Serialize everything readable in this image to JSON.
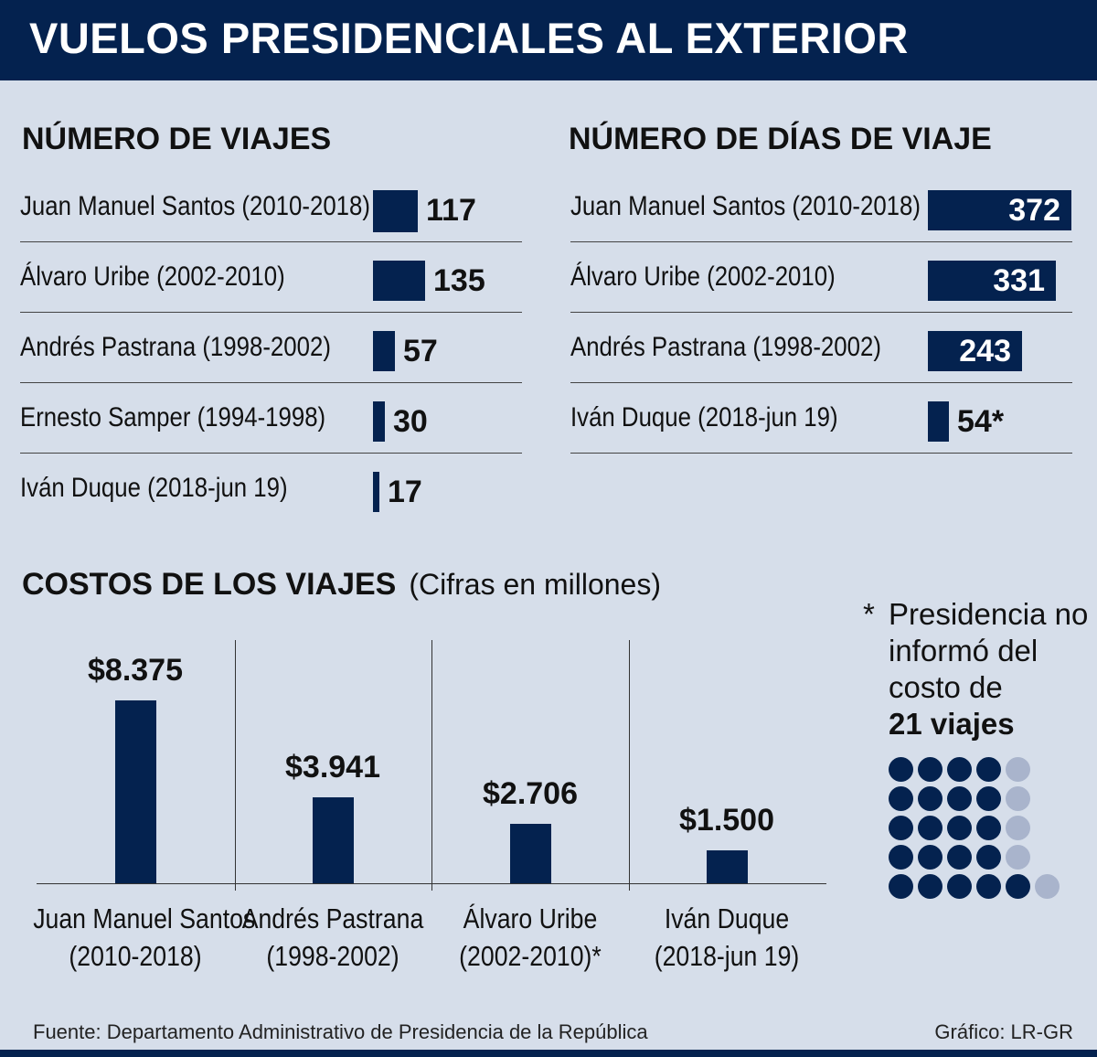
{
  "title": "VUELOS PRESIDENCIALES AL EXTERIOR",
  "chart_data": [
    {
      "type": "bar",
      "orientation": "horizontal",
      "title": "NÚMERO DE VIAJES",
      "categories": [
        "Juan Manuel Santos (2010-2018)",
        "Álvaro Uribe (2002-2010)",
        "Andrés Pastrana (1998-2002)",
        "Ernesto Samper (1994-1998)",
        "Iván Duque (2018-jun 19)"
      ],
      "values": [
        117,
        135,
        57,
        30,
        17
      ],
      "labels": [
        "117",
        "135",
        "57",
        "30",
        "17"
      ],
      "color": "#04224f"
    },
    {
      "type": "bar",
      "orientation": "horizontal",
      "title": "NÚMERO DE DÍAS DE VIAJE",
      "categories": [
        "Juan Manuel Santos (2010-2018)",
        "Álvaro Uribe (2002-2010)",
        "Andrés Pastrana (1998-2002)",
        "Iván Duque (2018-jun 19)"
      ],
      "values": [
        372,
        331,
        243,
        54
      ],
      "labels": [
        "372",
        "331",
        "243",
        "54*"
      ],
      "color": "#04224f"
    },
    {
      "type": "bar",
      "orientation": "vertical",
      "title": "COSTOS DE LOS VIAJES",
      "subtitle": "(Cifras en millones)",
      "categories": [
        [
          "Juan Manuel Santos",
          "(2010-2018)"
        ],
        [
          "Andrés Pastrana",
          "(1998-2002)"
        ],
        [
          "Álvaro Uribe",
          "(2002-2010)*"
        ],
        [
          "Iván Duque",
          "(2018-jun 19)"
        ]
      ],
      "values": [
        8375,
        3941,
        2706,
        1500
      ],
      "labels": [
        "$8.375",
        "$3.941",
        "$2.706",
        "$1.500"
      ],
      "color": "#04224f"
    }
  ],
  "note": {
    "star": "*",
    "text": "Presidencia no informó del costo de",
    "strong": "21 viajes"
  },
  "dots": {
    "columns": 6,
    "rows": 5,
    "filled_per_row": [
      4,
      4,
      4,
      4,
      5
    ],
    "filled_color": "#04224f",
    "empty_color": "#a9b4cc"
  },
  "footer": {
    "source": "Fuente: Departamento Administrativo de Presidencia de la República",
    "credit": "Gráfico: LR-GR"
  }
}
